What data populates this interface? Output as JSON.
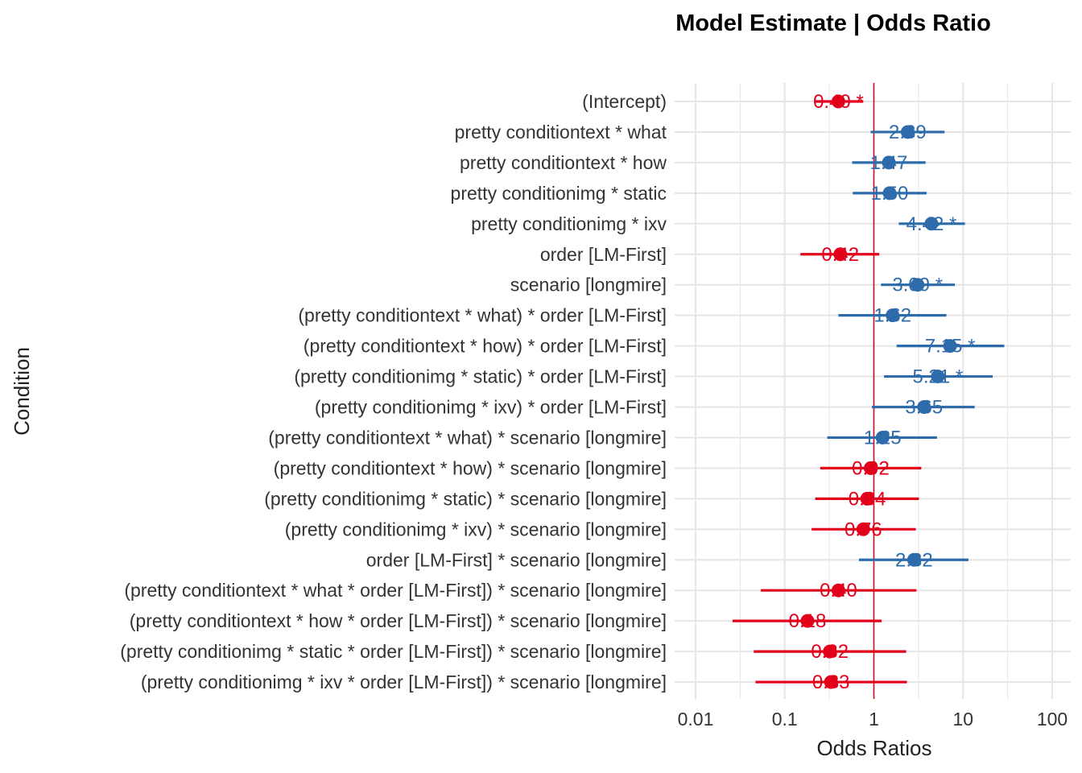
{
  "chart_data": {
    "type": "forest",
    "title": "Model Estimate | Odds Ratio",
    "xlabel": "Odds Ratios",
    "ylabel": "Condition",
    "x_scale": "log10",
    "xlim": [
      0.008,
      130
    ],
    "x_ticks": [
      {
        "value": 0.01,
        "label": "0.01"
      },
      {
        "value": 0.1,
        "label": "0.1"
      },
      {
        "value": 1,
        "label": "1"
      },
      {
        "value": 10,
        "label": "10"
      },
      {
        "value": 100,
        "label": "100"
      }
    ],
    "reference_line": 1,
    "grid": true,
    "colors": {
      "positive": "#2E6BAA",
      "negative": "#E3001B",
      "reference": "#E3001B",
      "grid": "#E5E5E5"
    },
    "rows": [
      {
        "term": "(Intercept)",
        "estimate": 0.4,
        "low": 0.22,
        "high": 0.76,
        "label": "0.40 *"
      },
      {
        "term": "pretty conditiontext * what",
        "estimate": 2.39,
        "low": 0.92,
        "high": 6.2,
        "label": "2.39"
      },
      {
        "term": "pretty conditiontext * how",
        "estimate": 1.47,
        "low": 0.57,
        "high": 3.8,
        "label": "1.47"
      },
      {
        "term": "pretty conditionimg * static",
        "estimate": 1.5,
        "low": 0.58,
        "high": 3.9,
        "label": "1.50"
      },
      {
        "term": "pretty conditionimg * ixv",
        "estimate": 4.42,
        "low": 1.9,
        "high": 10.5,
        "label": "4.42 *"
      },
      {
        "term": "order [LM-First]",
        "estimate": 0.42,
        "low": 0.15,
        "high": 1.15,
        "label": "0.42"
      },
      {
        "term": "scenario [longmire]",
        "estimate": 3.09,
        "low": 1.2,
        "high": 8.1,
        "label": "3.09 *"
      },
      {
        "term": "(pretty conditiontext * what) * order [LM-First]",
        "estimate": 1.62,
        "low": 0.4,
        "high": 6.5,
        "label": "1.62"
      },
      {
        "term": "(pretty conditiontext * how) * order [LM-First]",
        "estimate": 7.15,
        "low": 1.8,
        "high": 29,
        "label": "7.15 *"
      },
      {
        "term": "(pretty conditionimg * static) * order [LM-First]",
        "estimate": 5.21,
        "low": 1.3,
        "high": 21.5,
        "label": "5.21 *"
      },
      {
        "term": "(pretty conditionimg * ixv) * order [LM-First]",
        "estimate": 3.65,
        "low": 0.95,
        "high": 13.5,
        "label": "3.65"
      },
      {
        "term": "(pretty conditiontext * what) * scenario [longmire]",
        "estimate": 1.25,
        "low": 0.3,
        "high": 5.1,
        "label": "1.25"
      },
      {
        "term": "(pretty conditiontext * how) * scenario [longmire]",
        "estimate": 0.92,
        "low": 0.25,
        "high": 3.4,
        "label": "0.92"
      },
      {
        "term": "(pretty conditionimg * static) * scenario [longmire]",
        "estimate": 0.84,
        "low": 0.22,
        "high": 3.2,
        "label": "0.84"
      },
      {
        "term": "(pretty conditionimg * ixv) * scenario [longmire]",
        "estimate": 0.76,
        "low": 0.2,
        "high": 2.95,
        "label": "0.76"
      },
      {
        "term": "order [LM-First] * scenario [longmire]",
        "estimate": 2.82,
        "low": 0.68,
        "high": 11.5,
        "label": "2.82"
      },
      {
        "term": "(pretty conditiontext * what * order [LM-First]) * scenario [longmire]",
        "estimate": 0.4,
        "low": 0.054,
        "high": 3.0,
        "label": "0.40"
      },
      {
        "term": "(pretty conditiontext * how * order [LM-First]) * scenario [longmire]",
        "estimate": 0.18,
        "low": 0.026,
        "high": 1.22,
        "label": "0.18"
      },
      {
        "term": "(pretty conditionimg * static * order [LM-First]) * scenario [longmire]",
        "estimate": 0.32,
        "low": 0.045,
        "high": 2.3,
        "label": "0.32"
      },
      {
        "term": "(pretty conditionimg * ixv * order [LM-First]) * scenario [longmire]",
        "estimate": 0.33,
        "low": 0.047,
        "high": 2.35,
        "label": "0.33"
      }
    ]
  }
}
